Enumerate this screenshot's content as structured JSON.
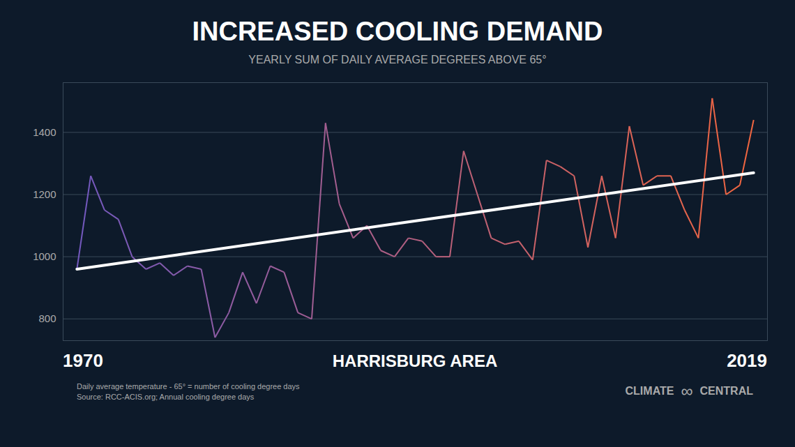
{
  "chart_data": {
    "type": "line",
    "title": "INCREASED COOLING DEMAND",
    "subtitle": "YEARLY SUM OF DAILY AVERAGE DEGREES ABOVE 65°",
    "annotations": [
      "1970",
      "HARRISBURG AREA",
      "2019"
    ],
    "notes": [
      "Daily average temperature - 65° = number of cooling degree days",
      "Source: RCC-ACIS.org; Annual cooling degree days"
    ],
    "credit": [
      "CLIMATE",
      "∞",
      "CENTRAL"
    ],
    "x": [
      1970,
      1971,
      1972,
      1973,
      1974,
      1975,
      1976,
      1977,
      1978,
      1979,
      1980,
      1981,
      1982,
      1983,
      1984,
      1985,
      1986,
      1987,
      1988,
      1989,
      1990,
      1991,
      1992,
      1993,
      1994,
      1995,
      1996,
      1997,
      1998,
      1999,
      2000,
      2001,
      2002,
      2003,
      2004,
      2005,
      2006,
      2007,
      2008,
      2009,
      2010,
      2011,
      2012,
      2013,
      2014,
      2015,
      2016,
      2017,
      2018,
      2019
    ],
    "values": [
      960,
      1260,
      1150,
      1120,
      1000,
      960,
      980,
      940,
      970,
      960,
      740,
      820,
      950,
      850,
      970,
      950,
      820,
      800,
      1430,
      1170,
      1060,
      1100,
      1020,
      1000,
      1060,
      1050,
      1000,
      1000,
      1340,
      1200,
      1060,
      1040,
      1050,
      990,
      1310,
      1290,
      1260,
      1030,
      1260,
      1060,
      1420,
      1230,
      1260,
      1260,
      1150,
      1060,
      1510,
      1200,
      1230,
      1440
    ],
    "color": [
      "#7359bf",
      "#f26640"
    ],
    "trend": {
      "x": [
        1970,
        2019
      ],
      "values": [
        960,
        1270
      ],
      "color": "#ffffff"
    },
    "xlim": [
      1969,
      2020
    ],
    "ylim": [
      730,
      1560
    ],
    "yticks": [
      800,
      1000,
      1200,
      1400
    ],
    "grid": true,
    "tick_labels": "y"
  }
}
